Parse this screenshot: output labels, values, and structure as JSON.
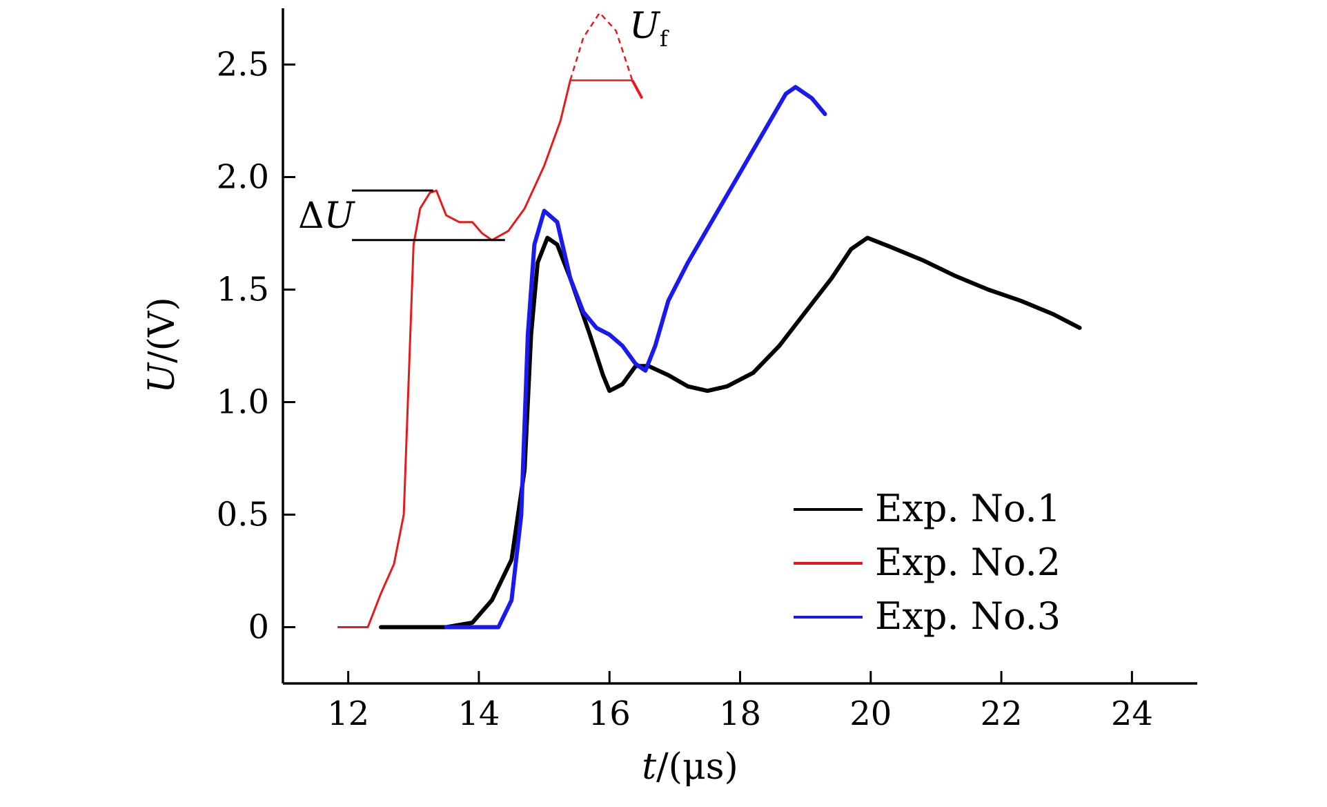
{
  "chart_data": {
    "type": "line",
    "xlabel_var": "t",
    "xlabel_unit": "/(μs)",
    "ylabel_var": "U",
    "ylabel_unit": "/(V)",
    "xlim": [
      11,
      25
    ],
    "ylim": [
      -0.25,
      2.75
    ],
    "xticks": [
      12,
      14,
      16,
      18,
      20,
      22,
      24
    ],
    "xtick_labels": [
      "12",
      "14",
      "16",
      "18",
      "20",
      "22",
      "24"
    ],
    "yticks": [
      0,
      0.5,
      1.0,
      1.5,
      2.0,
      2.5
    ],
    "ytick_labels": [
      "0",
      "0.5",
      "1.0",
      "1.5",
      "2.0",
      "2.5"
    ],
    "grid": false,
    "legend_position": "bottom-right",
    "series": [
      {
        "name": "Exp. No.1",
        "color": "#000000",
        "points": [
          [
            12.5,
            0
          ],
          [
            13.0,
            0
          ],
          [
            13.5,
            0
          ],
          [
            13.9,
            0.02
          ],
          [
            14.2,
            0.12
          ],
          [
            14.5,
            0.3
          ],
          [
            14.7,
            0.7
          ],
          [
            14.8,
            1.3
          ],
          [
            14.9,
            1.62
          ],
          [
            15.05,
            1.73
          ],
          [
            15.2,
            1.7
          ],
          [
            15.4,
            1.55
          ],
          [
            15.7,
            1.3
          ],
          [
            15.9,
            1.12
          ],
          [
            16.0,
            1.05
          ],
          [
            16.2,
            1.08
          ],
          [
            16.4,
            1.16
          ],
          [
            16.6,
            1.16
          ],
          [
            16.9,
            1.12
          ],
          [
            17.2,
            1.07
          ],
          [
            17.5,
            1.05
          ],
          [
            17.8,
            1.07
          ],
          [
            18.2,
            1.13
          ],
          [
            18.6,
            1.25
          ],
          [
            19.0,
            1.4
          ],
          [
            19.4,
            1.55
          ],
          [
            19.7,
            1.68
          ],
          [
            19.95,
            1.73
          ],
          [
            20.3,
            1.69
          ],
          [
            20.8,
            1.63
          ],
          [
            21.3,
            1.56
          ],
          [
            21.8,
            1.5
          ],
          [
            22.3,
            1.45
          ],
          [
            22.8,
            1.39
          ],
          [
            23.2,
            1.33
          ]
        ]
      },
      {
        "name": "Exp. No.2",
        "color": "#e8191a",
        "points": [
          [
            11.85,
            0
          ],
          [
            12.3,
            0
          ],
          [
            12.5,
            0.15
          ],
          [
            12.7,
            0.28
          ],
          [
            12.85,
            0.5
          ],
          [
            12.95,
            1.3
          ],
          [
            13.0,
            1.7
          ],
          [
            13.1,
            1.86
          ],
          [
            13.25,
            1.93
          ],
          [
            13.35,
            1.94
          ],
          [
            13.5,
            1.83
          ],
          [
            13.7,
            1.8
          ],
          [
            13.9,
            1.8
          ],
          [
            14.05,
            1.75
          ],
          [
            14.2,
            1.72
          ],
          [
            14.45,
            1.76
          ],
          [
            14.7,
            1.86
          ],
          [
            15.0,
            2.05
          ],
          [
            15.25,
            2.25
          ],
          [
            15.4,
            2.43
          ]
        ],
        "extrapolated": [
          [
            15.4,
            2.43
          ],
          [
            15.6,
            2.62
          ],
          [
            15.85,
            2.73
          ],
          [
            16.1,
            2.65
          ],
          [
            16.35,
            2.43
          ]
        ],
        "tail": [
          [
            16.35,
            2.43
          ],
          [
            16.5,
            2.35
          ]
        ]
      },
      {
        "name": "Exp. No.3",
        "color": "#1a1aef",
        "points": [
          [
            13.5,
            0
          ],
          [
            14.0,
            0
          ],
          [
            14.3,
            0
          ],
          [
            14.5,
            0.12
          ],
          [
            14.65,
            0.5
          ],
          [
            14.75,
            1.3
          ],
          [
            14.85,
            1.7
          ],
          [
            15.0,
            1.85
          ],
          [
            15.2,
            1.8
          ],
          [
            15.4,
            1.55
          ],
          [
            15.6,
            1.4
          ],
          [
            15.8,
            1.33
          ],
          [
            16.0,
            1.3
          ],
          [
            16.2,
            1.25
          ],
          [
            16.4,
            1.17
          ],
          [
            16.55,
            1.14
          ],
          [
            16.7,
            1.25
          ],
          [
            16.9,
            1.45
          ],
          [
            17.2,
            1.62
          ],
          [
            17.6,
            1.82
          ],
          [
            18.0,
            2.02
          ],
          [
            18.4,
            2.22
          ],
          [
            18.7,
            2.37
          ],
          [
            18.85,
            2.4
          ],
          [
            19.1,
            2.35
          ],
          [
            19.3,
            2.28
          ]
        ]
      }
    ],
    "annotations": {
      "delta_u_symbol": "Δ",
      "delta_u_var": "U",
      "delta_u_top": 1.94,
      "delta_u_bottom": 1.72,
      "uf_var": "U",
      "uf_sub": "f",
      "uf_level": 2.43
    }
  }
}
